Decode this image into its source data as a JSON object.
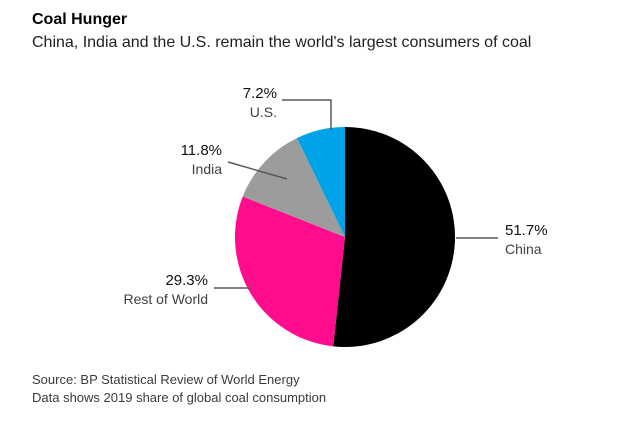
{
  "chart_data": {
    "type": "pie",
    "title": "Coal Hunger",
    "subtitle": "China, India and the U.S. remain the world's largest consumers of coal",
    "source_line1": "Source: BP Statistical Review of World Energy",
    "source_line2": "Data shows 2019 share of global coal consumption",
    "start_angle_deg": -90,
    "direction": "clockwise",
    "legend_position": "callout-labels",
    "slices": [
      {
        "name": "China",
        "value": 51.7,
        "label": "51.7%",
        "color": "#000000"
      },
      {
        "name": "Rest of World",
        "value": 29.3,
        "label": "29.3%",
        "color": "#ff0d8c"
      },
      {
        "name": "India",
        "value": 11.8,
        "label": "11.8%",
        "color": "#9c9c9c"
      },
      {
        "name": "U.S.",
        "value": 7.2,
        "label": "7.2%",
        "color": "#00a3e8"
      }
    ]
  }
}
